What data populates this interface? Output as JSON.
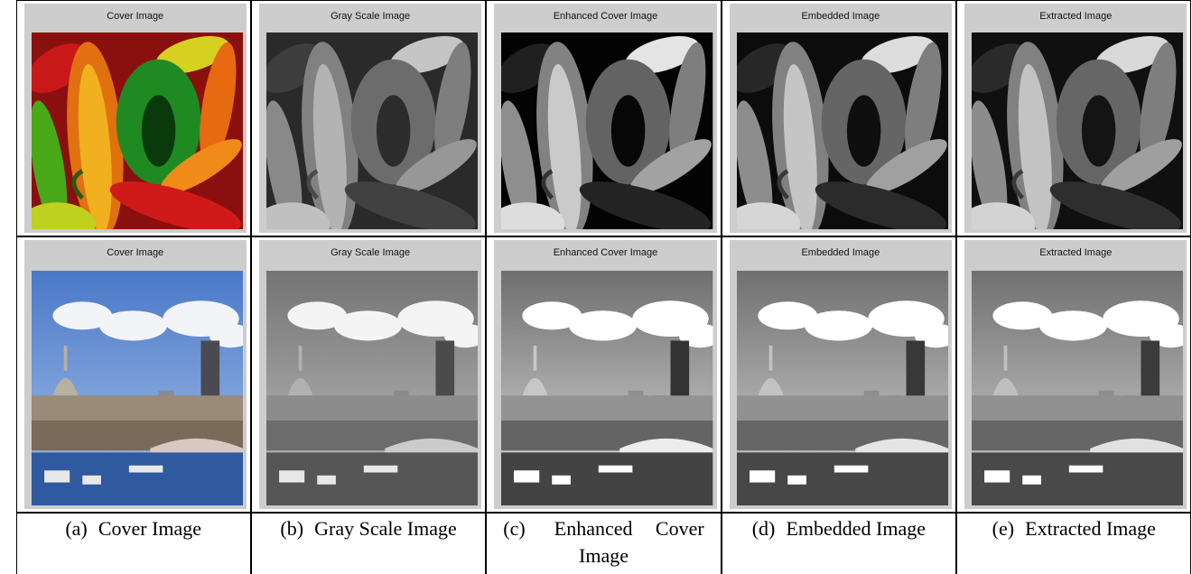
{
  "rows": [
    {
      "panels": [
        {
          "title": "Cover Image"
        },
        {
          "title": "Gray Scale Image"
        },
        {
          "title": "Enhanced Cover Image"
        },
        {
          "title": "Embedded Image"
        },
        {
          "title": "Extracted Image"
        }
      ]
    },
    {
      "panels": [
        {
          "title": "Cover Image"
        },
        {
          "title": "Gray Scale Image"
        },
        {
          "title": "Enhanced Cover Image"
        },
        {
          "title": "Embedded Image"
        },
        {
          "title": "Extracted Image"
        }
      ]
    }
  ],
  "captions": [
    {
      "label": "(a)",
      "text": "Cover Image"
    },
    {
      "label": "(b)",
      "text": "Gray Scale Image"
    },
    {
      "label": "(c)",
      "text": "Enhanced Cover Image"
    },
    {
      "label": "(d)",
      "text": "Embedded Image"
    },
    {
      "label": "(e)",
      "text": "Extracted Image"
    }
  ]
}
